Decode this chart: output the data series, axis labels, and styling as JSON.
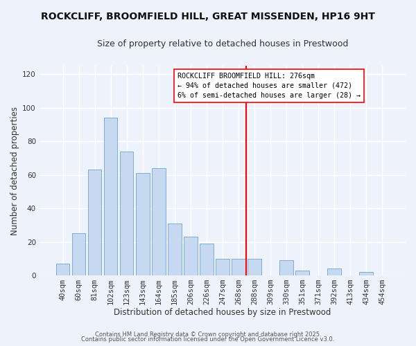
{
  "title": "ROCKCLIFF, BROOMFIELD HILL, GREAT MISSENDEN, HP16 9HT",
  "subtitle": "Size of property relative to detached houses in Prestwood",
  "xlabel": "Distribution of detached houses by size in Prestwood",
  "ylabel": "Number of detached properties",
  "bar_labels": [
    "40sqm",
    "60sqm",
    "81sqm",
    "102sqm",
    "123sqm",
    "143sqm",
    "164sqm",
    "185sqm",
    "206sqm",
    "226sqm",
    "247sqm",
    "268sqm",
    "288sqm",
    "309sqm",
    "330sqm",
    "351sqm",
    "371sqm",
    "392sqm",
    "413sqm",
    "434sqm",
    "454sqm"
  ],
  "bar_values": [
    7,
    25,
    63,
    94,
    74,
    61,
    64,
    31,
    23,
    19,
    10,
    10,
    10,
    0,
    9,
    3,
    0,
    4,
    0,
    2,
    0
  ],
  "bar_color": "#c6d9f1",
  "bar_edge_color": "#7bafd4",
  "vline_color": "red",
  "vline_pos": 11.5,
  "annotation_title": "ROCKCLIFF BROOMFIELD HILL: 276sqm",
  "annotation_line1": "← 94% of detached houses are smaller (472)",
  "annotation_line2": "6% of semi-detached houses are larger (28) →",
  "ylim": [
    0,
    125
  ],
  "yticks": [
    0,
    20,
    40,
    60,
    80,
    100,
    120
  ],
  "footer1": "Contains HM Land Registry data © Crown copyright and database right 2025.",
  "footer2": "Contains public sector information licensed under the Open Government Licence v3.0.",
  "bg_color": "#eef2fb",
  "grid_color": "#ffffff",
  "title_fontsize": 10,
  "subtitle_fontsize": 9,
  "axis_label_fontsize": 8.5,
  "tick_fontsize": 7.5,
  "footer_fontsize": 6.0
}
